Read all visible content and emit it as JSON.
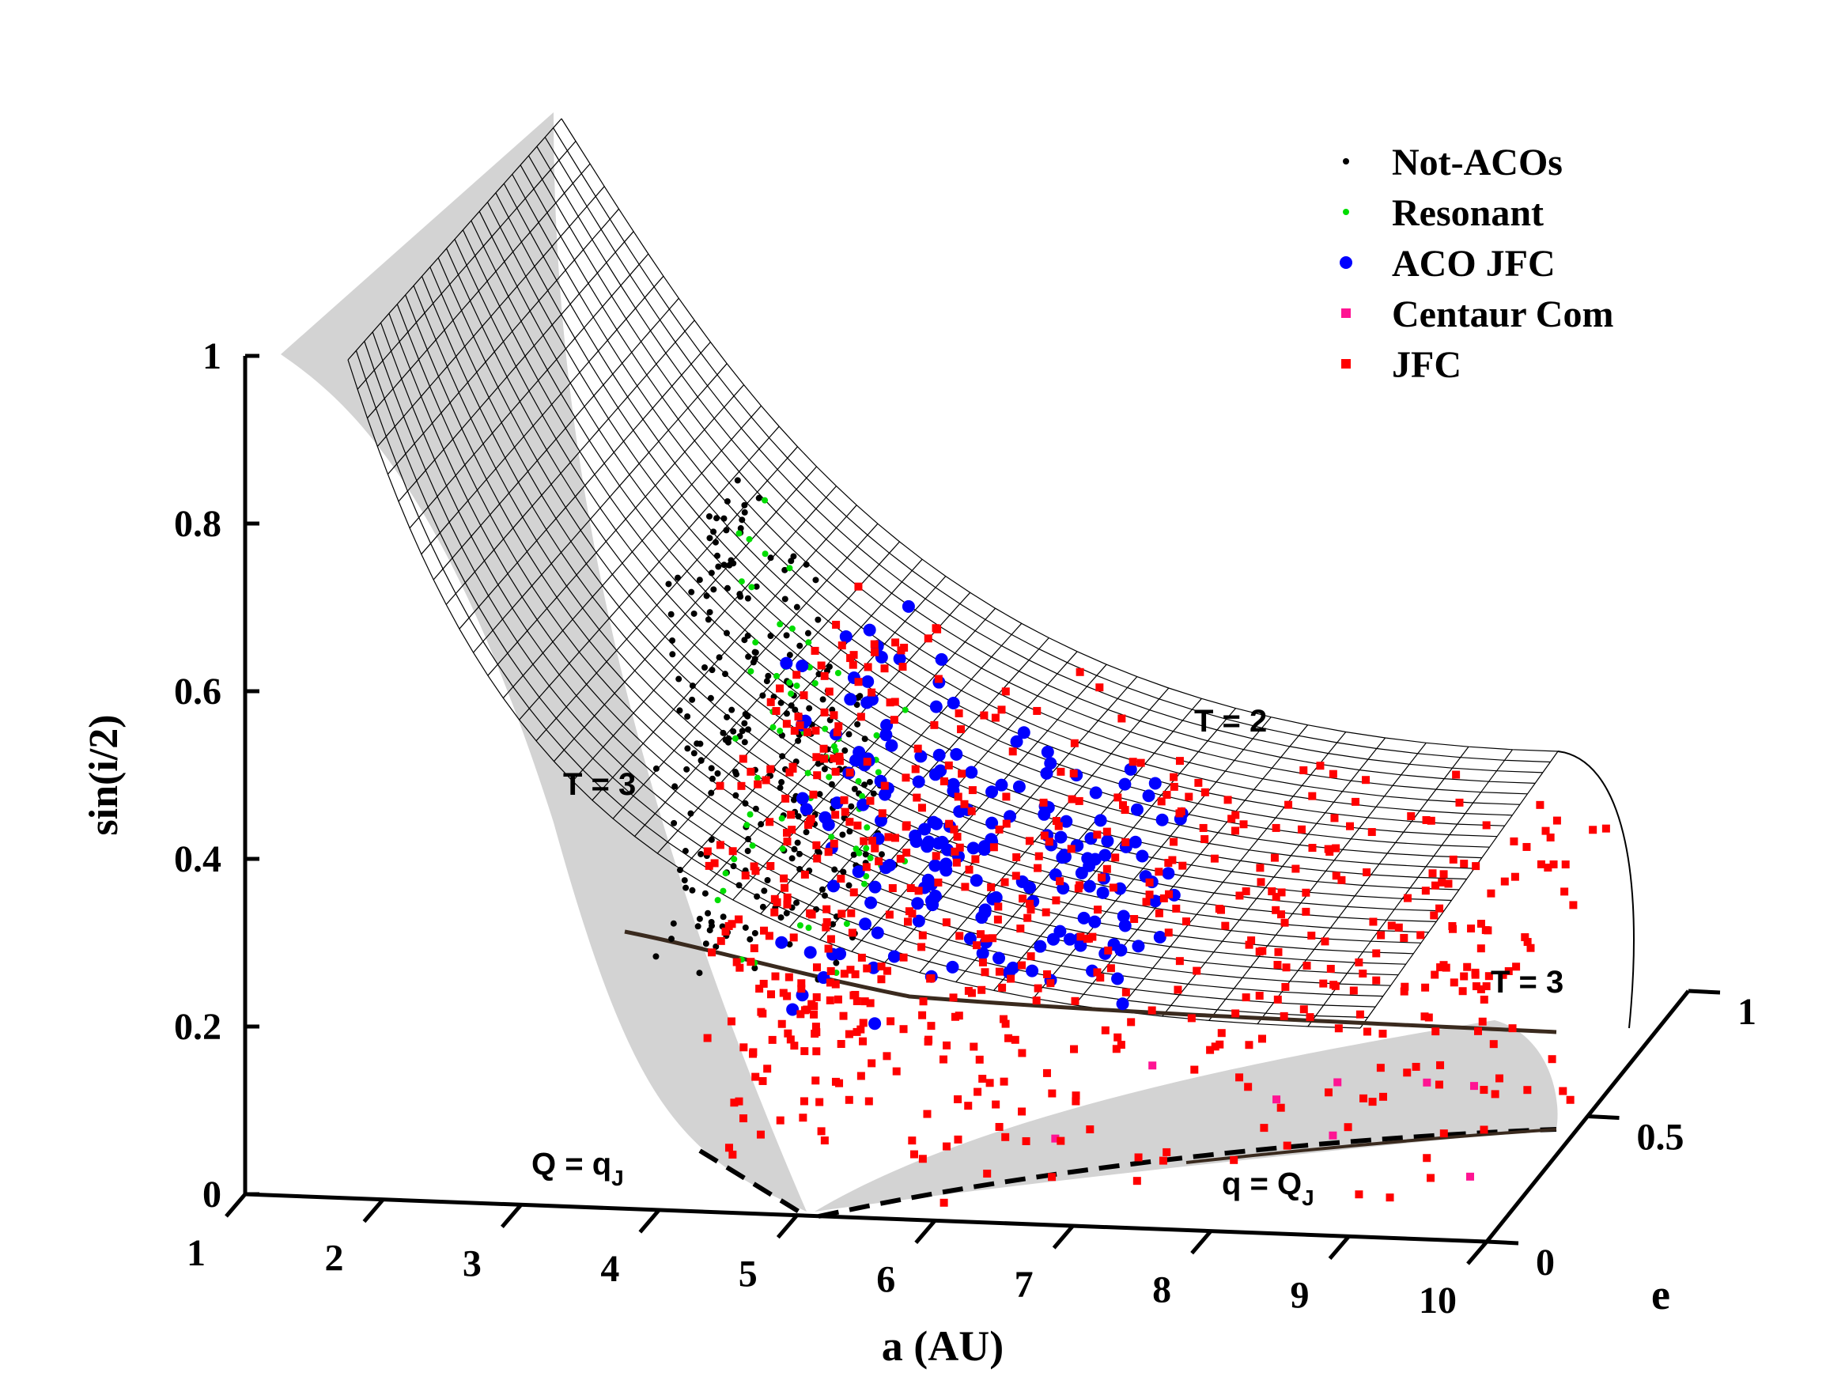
{
  "chart_data": {
    "type": "scatter3d",
    "title": "",
    "xlabel": "a (AU)",
    "ylabel": "e",
    "zlabel": "sin(i/2)",
    "xlim": [
      1,
      10
    ],
    "ylim": [
      0,
      1
    ],
    "zlim": [
      0,
      1
    ],
    "x_ticks": [
      "1",
      "2",
      "3",
      "4",
      "5",
      "6",
      "7",
      "8",
      "9",
      "10"
    ],
    "y_ticks": [
      "0",
      "0.5",
      "1"
    ],
    "z_ticks": [
      "0",
      "0.2",
      "0.4",
      "0.6",
      "0.8",
      "1"
    ],
    "legend_position": "top-right",
    "legend": [
      {
        "label": "Not-ACOs",
        "color": "#000000",
        "marker": "dot"
      },
      {
        "label": "Resonant",
        "color": "#00dd00",
        "marker": "dot"
      },
      {
        "label": "ACO JFC",
        "color": "#0000ff",
        "marker": "circle"
      },
      {
        "label": "Centaur Com",
        "color": "#ff1493",
        "marker": "square"
      },
      {
        "label": "JFC",
        "color": "#ff0000",
        "marker": "square"
      }
    ],
    "surfaces": [
      {
        "name": "T = 2",
        "type": "wireframe",
        "value": 2
      },
      {
        "name": "T = 3",
        "type": "wireframe",
        "value": 3
      },
      {
        "name": "Q = qJ",
        "type": "boundary",
        "value": 4.95
      },
      {
        "name": "q = QJ",
        "type": "boundary",
        "value": 5.46
      }
    ],
    "annotations": {
      "t2": "T = 2",
      "t3a": "T = 3",
      "t3b": "T = 3",
      "qq_main": "Q = q",
      "qq_sub": "J",
      "qQ_main": "q = Q",
      "qQ_sub": "J"
    },
    "series_summary": [
      {
        "name": "Not-ACOs",
        "a_range": [
          3.9,
          5.3
        ],
        "e_range": [
          0.05,
          0.3
        ],
        "sin_half_i_range": [
          0.25,
          0.8
        ]
      },
      {
        "name": "Resonant",
        "a_range": [
          4.3,
          5.4
        ],
        "e_range": [
          0.05,
          0.3
        ],
        "sin_half_i_range": [
          0.25,
          0.8
        ]
      },
      {
        "name": "ACO JFC",
        "a_range": [
          4.8,
          7.2
        ],
        "e_range": [
          0.05,
          0.5
        ],
        "sin_half_i_range": [
          0.2,
          0.8
        ]
      },
      {
        "name": "Centaur Com",
        "a_range": [
          6.5,
          10
        ],
        "e_range": [
          0.0,
          0.2
        ],
        "sin_half_i_range": [
          0.05,
          0.2
        ]
      },
      {
        "name": "JFC",
        "a_range": [
          4.3,
          10
        ],
        "e_range": [
          0.0,
          0.7
        ],
        "sin_half_i_range": [
          0.0,
          0.55
        ]
      }
    ]
  }
}
